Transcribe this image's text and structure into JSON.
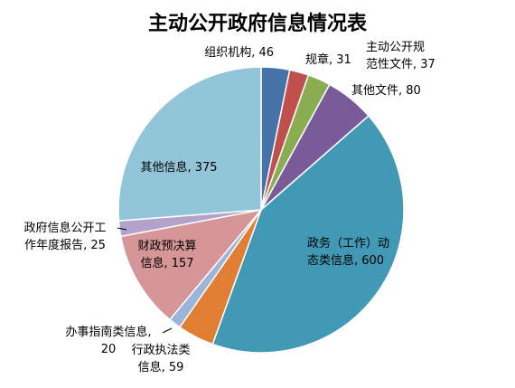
{
  "chart_data": {
    "type": "pie",
    "title": "主动公开政府信息情况表",
    "slices": [
      {
        "category": "组织机构",
        "value": 46,
        "label_lines": [
          "组织机构, 46"
        ],
        "color": "#4573a7"
      },
      {
        "category": "规章",
        "value": 31,
        "label_lines": [
          "规章, 31"
        ],
        "color": "#c0504d"
      },
      {
        "category": "主动公开规范性文件",
        "value": 37,
        "label_lines": [
          "主动公开规",
          "范性文件, 37"
        ],
        "color": "#8aad52"
      },
      {
        "category": "其他文件",
        "value": 80,
        "label_lines": [
          "其他文件, 80"
        ],
        "color": "#7a5b9a"
      },
      {
        "category": "政务（工作）动态类信息",
        "value": 600,
        "label_lines": [
          "政务（工作）动",
          "态类信息, 600"
        ],
        "color": "#4199b5"
      },
      {
        "category": "行政执法类信息",
        "value": 59,
        "label_lines": [
          "行政执法类",
          "信息, 59"
        ],
        "color": "#e07f33"
      },
      {
        "category": "办事指南类信息",
        "value": 20,
        "label_lines": [
          "办事指南类信息,",
          "20"
        ],
        "color": "#9bb5d8"
      },
      {
        "category": "财政预决算信息",
        "value": 157,
        "label_lines": [
          "财政预决算",
          "信息, 157"
        ],
        "color": "#d69596"
      },
      {
        "category": "政府信息公开工作年度报告",
        "value": 25,
        "label_lines": [
          "政府信息公开工",
          "作年度报告, 25"
        ],
        "color": "#b3a2c9"
      },
      {
        "category": "其他信息",
        "value": 375,
        "label_lines": [
          "其他信息, 375"
        ],
        "color": "#93c5d8"
      }
    ]
  }
}
